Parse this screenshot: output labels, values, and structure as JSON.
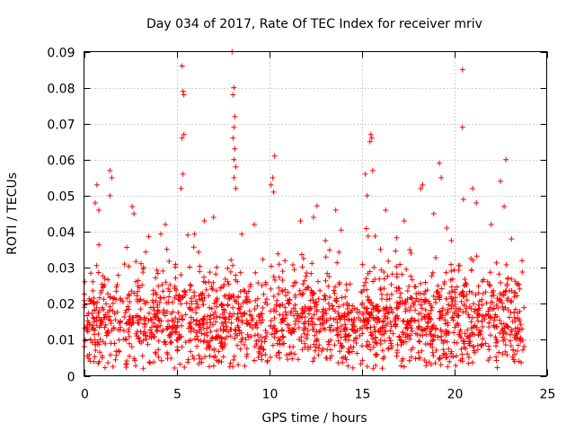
{
  "chart_data": {
    "type": "scatter",
    "title": "Day 034 of 2017, Rate Of TEC Index for receiver mriv",
    "xlabel": "GPS time / hours",
    "ylabel": "ROTI / TECUs",
    "xlim": [
      0,
      25
    ],
    "ylim": [
      0,
      0.09
    ],
    "x_ticks": [
      0,
      5,
      10,
      15,
      20,
      25
    ],
    "x_tick_labels": [
      "0",
      "5",
      "10",
      "15",
      "20",
      "25"
    ],
    "y_ticks": [
      0,
      0.01,
      0.02,
      0.03,
      0.04,
      0.05,
      0.06,
      0.07,
      0.08,
      0.09
    ],
    "y_tick_labels": [
      "0",
      "0.01",
      "0.02",
      "0.03",
      "0.04",
      "0.05",
      "0.06",
      "0.07",
      "0.08",
      "0.09"
    ],
    "grid": true,
    "marker": "+",
    "series_color": "#ff0000",
    "x_range_of_data": [
      0,
      23.8
    ],
    "typical_band": [
      0.005,
      0.025
    ],
    "series": [
      {
        "name": "ROTI",
        "points": [
          [
            5.3,
            0.086
          ],
          [
            5.35,
            0.079
          ],
          [
            5.4,
            0.078
          ],
          [
            5.3,
            0.066
          ],
          [
            5.4,
            0.067
          ],
          [
            5.35,
            0.056
          ],
          [
            5.25,
            0.052
          ],
          [
            8.0,
            0.09
          ],
          [
            8.1,
            0.08
          ],
          [
            8.05,
            0.078
          ],
          [
            8.15,
            0.072
          ],
          [
            8.1,
            0.069
          ],
          [
            8.05,
            0.066
          ],
          [
            8.15,
            0.063
          ],
          [
            8.1,
            0.06
          ],
          [
            8.2,
            0.058
          ],
          [
            8.1,
            0.055
          ],
          [
            8.2,
            0.052
          ],
          [
            10.3,
            0.061
          ],
          [
            10.2,
            0.055
          ],
          [
            10.1,
            0.053
          ],
          [
            10.25,
            0.051
          ],
          [
            15.5,
            0.067
          ],
          [
            15.55,
            0.066
          ],
          [
            15.45,
            0.065
          ],
          [
            15.6,
            0.057
          ],
          [
            15.2,
            0.056
          ],
          [
            15.3,
            0.05
          ],
          [
            18.3,
            0.053
          ],
          [
            18.2,
            0.052
          ],
          [
            19.2,
            0.059
          ],
          [
            19.3,
            0.055
          ],
          [
            20.45,
            0.085
          ],
          [
            20.45,
            0.069
          ],
          [
            20.5,
            0.049
          ],
          [
            21.0,
            0.052
          ],
          [
            22.8,
            0.06
          ],
          [
            22.5,
            0.054
          ],
          [
            22.7,
            0.047
          ],
          [
            1.4,
            0.057
          ],
          [
            1.5,
            0.055
          ],
          [
            1.4,
            0.05
          ],
          [
            0.7,
            0.053
          ],
          [
            0.6,
            0.048
          ],
          [
            0.8,
            0.046
          ],
          [
            2.6,
            0.047
          ],
          [
            2.7,
            0.045
          ],
          [
            4.4,
            0.042
          ],
          [
            6.5,
            0.043
          ],
          [
            7.0,
            0.044
          ],
          [
            9.2,
            0.042
          ],
          [
            11.7,
            0.043
          ],
          [
            12.4,
            0.044
          ],
          [
            13.6,
            0.046
          ],
          [
            16.3,
            0.046
          ],
          [
            17.3,
            0.043
          ],
          [
            18.9,
            0.045
          ],
          [
            19.6,
            0.041
          ],
          [
            21.2,
            0.048
          ],
          [
            22.0,
            0.042
          ],
          [
            23.1,
            0.038
          ]
        ]
      }
    ]
  }
}
